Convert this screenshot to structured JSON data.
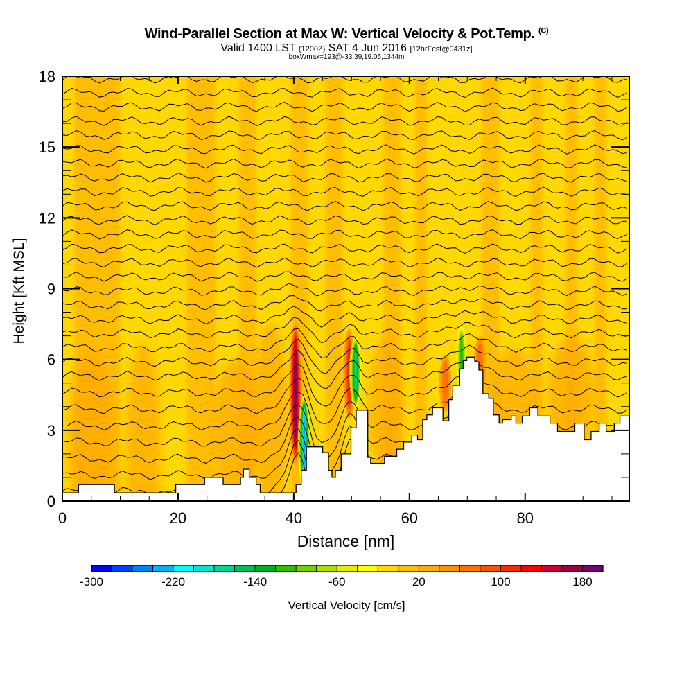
{
  "header": {
    "title": "Wind-Parallel Section at Max W: Vertical Velocity & Pot.Temp.",
    "copyright_mark": "(C)",
    "valid_prefix": "Valid 1400 LST",
    "valid_utc": "(1200Z)",
    "valid_date": "SAT 4 Jun 2016",
    "forecast": "[12hrFcst@0431z]",
    "box_wmax": "boxWmax=193@-33.39,19.05,1344m"
  },
  "chart_data": {
    "type": "heatmap",
    "title": "Wind-Parallel Section at Max W: Vertical Velocity & Pot.Temp.",
    "xlabel": "Distance [nm]",
    "ylabel": "Height [Kft MSL]",
    "xlim": [
      0,
      98
    ],
    "ylim": [
      0,
      18
    ],
    "x_ticks": [
      0,
      20,
      40,
      60,
      80
    ],
    "x_tick_labels": [
      "0",
      "20",
      "40",
      "60",
      "80"
    ],
    "x_minor_step": 5,
    "y_ticks": [
      0,
      3,
      6,
      9,
      12,
      15,
      18
    ],
    "y_tick_labels": [
      "0",
      "3",
      "6",
      "9",
      "12",
      "15",
      "18"
    ],
    "y_minor_step": 1,
    "colorbar": {
      "label": "Vertical Velocity [cm/s]",
      "min": -300,
      "max": 200,
      "step": 20,
      "tick_values": [
        -300,
        -220,
        -140,
        -60,
        20,
        100,
        180
      ],
      "tick_labels": [
        "-300",
        "-220",
        "-140",
        "-60",
        "20",
        "100",
        "180"
      ],
      "colors": [
        "#0000ff",
        "#0040ff",
        "#0080ff",
        "#00b0ff",
        "#00ffff",
        "#00e8c8",
        "#00d890",
        "#00c050",
        "#00b020",
        "#30c000",
        "#70d000",
        "#a8e000",
        "#e0f000",
        "#ffff00",
        "#ffd800",
        "#ffc000",
        "#ffa800",
        "#ff9000",
        "#ff7000",
        "#ff5000",
        "#ff2800",
        "#ff0000",
        "#d00030",
        "#a00040",
        "#780070"
      ],
      "placement": "bottom"
    },
    "background_value_cm_s": 10,
    "features": [
      {
        "name": "updraft-core-41nm",
        "x": 40.3,
        "y_range": [
          1.5,
          7.6
        ],
        "peak_value": 193,
        "sign": "up"
      },
      {
        "name": "downdraft-core-42nm",
        "x": 41.8,
        "y_range": [
          0.5,
          4.5
        ],
        "peak_value": -230,
        "sign": "down"
      },
      {
        "name": "updraft-50nm",
        "x": 49.6,
        "y_range": [
          3.5,
          7.3
        ],
        "peak_value": 110,
        "sign": "up"
      },
      {
        "name": "downdraft-51nm",
        "x": 50.7,
        "y_range": [
          3.9,
          7.0
        ],
        "peak_value": -180,
        "sign": "down"
      },
      {
        "name": "updraft-66nm",
        "x": 66.2,
        "y_range": [
          3.8,
          6.2
        ],
        "peak_value": 80,
        "sign": "up"
      },
      {
        "name": "downdraft-69nm",
        "x": 69.0,
        "y_range": [
          4.5,
          7.5
        ],
        "peak_value": -120,
        "sign": "down"
      },
      {
        "name": "updraft-72nm",
        "x": 72.2,
        "y_range": [
          4.6,
          7.0
        ],
        "peak_value": 80,
        "sign": "up"
      }
    ],
    "terrain_kft": {
      "x": [
        0,
        2.8,
        2.8,
        9.0,
        9.0,
        19.6,
        19.6,
        24.6,
        24.6,
        27.8,
        27.8,
        30.8,
        30.8,
        31.3,
        31.3,
        32.3,
        32.3,
        33.5,
        33.5,
        34.2,
        34.2,
        35.2,
        35.2,
        40.4,
        40.4,
        41.3,
        41.3,
        42.2,
        42.2,
        45.0,
        45.0,
        46.0,
        46.0,
        46.6,
        46.6,
        47.2,
        47.2,
        48.2,
        48.2,
        49.9,
        49.9,
        50.8,
        50.8,
        52.8,
        52.8,
        53.3,
        53.3,
        55.7,
        55.7,
        57.8,
        57.8,
        59.0,
        59.0,
        60.4,
        60.4,
        61.4,
        61.4,
        62.3,
        62.3,
        63.0,
        63.0,
        64.0,
        64.0,
        65.8,
        65.8,
        66.8,
        66.8,
        67.5,
        67.5,
        68.7,
        68.7,
        69.3,
        69.3,
        69.9,
        69.9,
        71.3,
        71.3,
        72.0,
        72.0,
        72.7,
        72.7,
        73.7,
        73.7,
        74.5,
        74.5,
        75.5,
        75.5,
        76.1,
        76.1,
        77.6,
        77.6,
        78.4,
        78.4,
        79.5,
        79.5,
        80.8,
        80.8,
        82.2,
        82.2,
        84.3,
        84.3,
        85.6,
        85.6,
        88.6,
        88.6,
        90.2,
        90.2,
        91.4,
        91.4,
        92.8,
        92.8,
        94.0,
        94.0,
        95.4,
        95.4,
        96.4,
        96.4,
        98
      ],
      "y": [
        0.35,
        0.35,
        0.7,
        0.7,
        0.35,
        0.35,
        0.7,
        0.7,
        1.0,
        1.0,
        0.7,
        0.7,
        1.0,
        1.0,
        1.35,
        1.35,
        1.0,
        1.0,
        0.7,
        0.7,
        0.35,
        0.35,
        0.35,
        0.35,
        0.7,
        0.7,
        1.3,
        1.3,
        2.3,
        2.3,
        2.05,
        2.05,
        1.3,
        1.3,
        1.0,
        1.0,
        1.3,
        1.3,
        2.0,
        2.0,
        3.1,
        3.1,
        3.85,
        3.85,
        1.85,
        1.85,
        1.6,
        1.6,
        1.9,
        1.9,
        2.2,
        2.2,
        2.5,
        2.5,
        2.8,
        2.8,
        2.6,
        2.6,
        3.45,
        3.45,
        3.65,
        3.65,
        3.95,
        3.95,
        3.4,
        3.4,
        4.3,
        4.3,
        4.9,
        4.9,
        5.6,
        5.6,
        5.95,
        5.95,
        6.1,
        6.1,
        5.9,
        5.9,
        5.55,
        5.55,
        4.55,
        4.55,
        4.35,
        4.35,
        3.65,
        3.65,
        3.3,
        3.3,
        3.45,
        3.45,
        3.6,
        3.6,
        3.3,
        3.3,
        3.6,
        3.6,
        3.95,
        3.95,
        3.6,
        3.6,
        3.3,
        3.3,
        2.95,
        2.95,
        3.3,
        3.3,
        2.6,
        2.6,
        2.95,
        2.95,
        3.3,
        3.3,
        2.95,
        2.95,
        3.3,
        3.3,
        3.6,
        3.6,
        3.6
      ]
    },
    "theta_contours": {
      "variable": "Potential Temperature",
      "unit": "F",
      "count": 30
    }
  }
}
